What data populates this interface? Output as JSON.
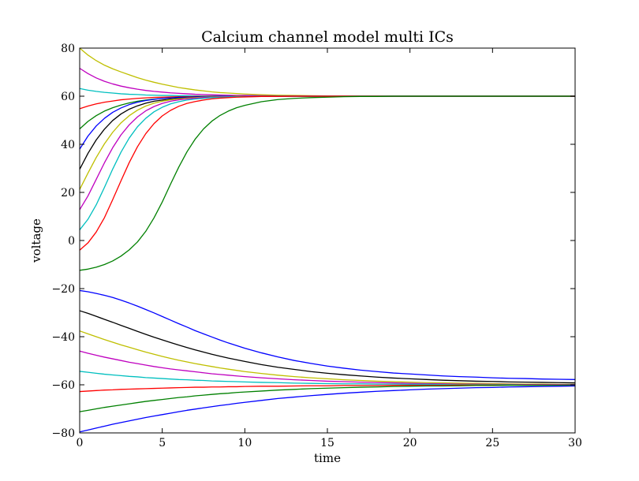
{
  "chart_data": {
    "type": "line",
    "title": "Calcium channel model multi ICs",
    "xlabel": "time",
    "ylabel": "voltage",
    "xlim": [
      0,
      30
    ],
    "ylim": [
      -80,
      80
    ],
    "xticks": [
      0,
      5,
      10,
      15,
      20,
      25,
      30
    ],
    "yticks": [
      -80,
      -60,
      -40,
      -20,
      0,
      20,
      40,
      60,
      80
    ],
    "xtick_labels": [
      "0",
      "5",
      "10",
      "15",
      "20",
      "25",
      "30"
    ],
    "ytick_labels": [
      "−80",
      "−60",
      "−40",
      "−20",
      "0",
      "20",
      "40",
      "60",
      "80"
    ],
    "grid": false,
    "legend": "none",
    "x": [
      0,
      0.5,
      1,
      1.5,
      2,
      2.5,
      3,
      3.5,
      4,
      4.5,
      5,
      5.5,
      6,
      6.5,
      7,
      7.5,
      8,
      8.5,
      9,
      9.5,
      10,
      11,
      12,
      13,
      14,
      15,
      16,
      17,
      18,
      19,
      20,
      21,
      22,
      23,
      24,
      25,
      26,
      27,
      28,
      29,
      30
    ],
    "series": [
      {
        "color": "#bfbf00",
        "values": [
          80,
          77.1,
          74.8,
          72.9,
          71.4,
          70.1,
          68.9,
          67.7,
          66.7,
          65.8,
          65,
          64.3,
          63.6,
          63.1,
          62.6,
          62.2,
          61.8,
          61.5,
          61.3,
          61.1,
          60.9,
          60.6,
          60.4,
          60.3,
          60.2,
          60.1,
          60.1,
          60,
          60,
          60,
          60,
          60,
          60,
          60,
          60,
          60,
          60,
          60,
          60,
          60,
          60
        ]
      },
      {
        "color": "#bf00bf",
        "values": [
          71.6,
          69.4,
          67.6,
          66.2,
          65.1,
          64.2,
          63.5,
          62.9,
          62.4,
          62,
          61.7,
          61.4,
          61.2,
          61,
          60.8,
          60.7,
          60.6,
          60.5,
          60.4,
          60.3,
          60.3,
          60.2,
          60.1,
          60.1,
          60,
          60,
          60,
          60,
          60,
          60,
          60,
          60,
          60,
          60,
          60,
          60,
          60,
          60,
          60,
          60,
          60
        ]
      },
      {
        "color": "#00bfbf",
        "values": [
          63.2,
          62.5,
          62,
          61.6,
          61.3,
          61,
          60.8,
          60.7,
          60.5,
          60.4,
          60.3,
          60.3,
          60.2,
          60.2,
          60.1,
          60.1,
          60.1,
          60.1,
          60,
          60,
          60,
          60,
          60,
          60,
          60,
          60,
          60,
          60,
          60,
          60,
          60,
          60,
          60,
          60,
          60,
          60,
          60,
          60,
          60,
          60,
          60
        ]
      },
      {
        "color": "#ff0000",
        "values": [
          54.8,
          55.9,
          56.8,
          57.5,
          58,
          58.5,
          58.8,
          59.1,
          59.3,
          59.5,
          59.6,
          59.7,
          59.8,
          59.8,
          59.9,
          59.9,
          59.9,
          60,
          60,
          60,
          60,
          60,
          60,
          60,
          60,
          60,
          60,
          60,
          60,
          60,
          60,
          60,
          60,
          60,
          60,
          60,
          60,
          60,
          60,
          60,
          60
        ]
      },
      {
        "color": "#008000",
        "values": [
          46.4,
          49.5,
          51.9,
          53.8,
          55.2,
          56.3,
          57.2,
          57.9,
          58.4,
          58.8,
          59.1,
          59.3,
          59.5,
          59.6,
          59.7,
          59.8,
          59.8,
          59.9,
          59.9,
          59.9,
          60,
          60,
          60,
          60,
          60,
          60,
          60,
          60,
          60,
          60,
          60,
          60,
          60,
          60,
          60,
          60,
          60,
          60,
          60,
          60,
          60
        ]
      },
      {
        "color": "#0000ff",
        "values": [
          38,
          43.4,
          47.6,
          50.8,
          53.3,
          55.1,
          56.5,
          57.5,
          58.2,
          58.7,
          59.1,
          59.3,
          59.5,
          59.6,
          59.7,
          59.8,
          59.8,
          59.9,
          59.9,
          59.9,
          60,
          60,
          60,
          60,
          60,
          60,
          60,
          60,
          60,
          60,
          60,
          60,
          60,
          60,
          60,
          60,
          60,
          60,
          60,
          60,
          60
        ]
      },
      {
        "color": "#000000",
        "values": [
          29.6,
          36.2,
          41.8,
          46.3,
          49.9,
          52.6,
          54.6,
          56,
          57.1,
          57.9,
          58.4,
          58.8,
          59.1,
          59.3,
          59.5,
          59.6,
          59.7,
          59.8,
          59.8,
          59.9,
          59.9,
          60,
          60,
          60,
          60,
          60,
          60,
          60,
          60,
          60,
          60,
          60,
          60,
          60,
          60,
          60,
          60,
          60,
          60,
          60,
          60
        ]
      },
      {
        "color": "#bfbf00",
        "values": [
          21.2,
          28,
          34.5,
          40.2,
          45,
          48.9,
          51.9,
          54.2,
          55.9,
          57.1,
          57.9,
          58.5,
          58.9,
          59.2,
          59.4,
          59.6,
          59.7,
          59.8,
          59.8,
          59.9,
          59.9,
          60,
          60,
          60,
          60,
          60,
          60,
          60,
          60,
          60,
          60,
          60,
          60,
          60,
          60,
          60,
          60,
          60,
          60,
          60,
          60
        ]
      },
      {
        "color": "#bf00bf",
        "values": [
          12.8,
          18.5,
          25.4,
          32.3,
          38.6,
          43.9,
          48.1,
          51.4,
          53.9,
          55.7,
          57,
          57.9,
          58.5,
          58.9,
          59.2,
          59.4,
          59.6,
          59.7,
          59.8,
          59.8,
          59.9,
          60,
          60,
          60,
          60,
          60,
          60,
          60,
          60,
          60,
          60,
          60,
          60,
          60,
          60,
          60,
          60,
          60,
          60,
          60,
          60
        ]
      },
      {
        "color": "#00bfbf",
        "values": [
          4.4,
          8.8,
          14.8,
          22.1,
          29.7,
          36.7,
          42.6,
          47.3,
          50.8,
          53.5,
          55.4,
          56.8,
          57.7,
          58.4,
          58.8,
          59.1,
          59.4,
          59.5,
          59.7,
          59.8,
          59.8,
          59.9,
          60,
          60,
          60,
          60,
          60,
          60,
          60,
          60,
          60,
          60,
          60,
          60,
          60,
          60,
          60,
          60,
          60,
          60,
          60
        ]
      },
      {
        "color": "#ff0000",
        "values": [
          -4,
          -1,
          3.5,
          9.5,
          17,
          24.8,
          32.4,
          39,
          44.4,
          48.6,
          51.8,
          54.1,
          55.8,
          57,
          57.8,
          58.4,
          58.9,
          59.2,
          59.4,
          59.6,
          59.7,
          59.9,
          59.9,
          60,
          60,
          60,
          60,
          60,
          60,
          60,
          60,
          60,
          60,
          60,
          60,
          60,
          60,
          60,
          60,
          60,
          60
        ]
      },
      {
        "color": "#008000",
        "values": [
          -12.4,
          -11.9,
          -11.1,
          -10,
          -8.5,
          -6.5,
          -3.9,
          -0.6,
          3.8,
          9.4,
          16,
          23.4,
          30.5,
          36.9,
          42.2,
          46.4,
          49.6,
          52,
          53.8,
          55.2,
          56.2,
          57.7,
          58.6,
          59.1,
          59.4,
          59.6,
          59.8,
          59.9,
          59.9,
          60,
          60,
          60,
          60,
          60,
          60,
          60,
          60,
          60,
          60,
          60,
          60
        ]
      },
      {
        "color": "#0000ff",
        "values": [
          -20.8,
          -21.3,
          -22,
          -22.8,
          -23.7,
          -24.8,
          -26,
          -27.3,
          -28.7,
          -30.1,
          -31.6,
          -33.1,
          -34.6,
          -36,
          -37.5,
          -38.8,
          -40.1,
          -41.4,
          -42.6,
          -43.7,
          -44.8,
          -46.7,
          -48.4,
          -49.9,
          -51.1,
          -52.2,
          -53.1,
          -53.9,
          -54.5,
          -55.1,
          -55.5,
          -55.9,
          -56.3,
          -56.6,
          -56.8,
          -57.1,
          -57.3,
          -57.4,
          -57.6,
          -57.7,
          -57.8
        ]
      },
      {
        "color": "#000000",
        "values": [
          -29.2,
          -30.3,
          -31.5,
          -32.8,
          -34,
          -35.3,
          -36.5,
          -37.8,
          -39,
          -40.2,
          -41.3,
          -42.4,
          -43.5,
          -44.5,
          -45.5,
          -46.4,
          -47.3,
          -48.1,
          -48.9,
          -49.6,
          -50.3,
          -51.6,
          -52.7,
          -53.6,
          -54.5,
          -55.2,
          -55.8,
          -56.3,
          -56.8,
          -57.2,
          -57.5,
          -57.8,
          -58.1,
          -58.3,
          -58.5,
          -58.6,
          -58.8,
          -58.9,
          -59,
          -59.1,
          -59.2
        ]
      },
      {
        "color": "#bfbf00",
        "values": [
          -37.6,
          -38.8,
          -40,
          -41.2,
          -42.3,
          -43.4,
          -44.4,
          -45.4,
          -46.4,
          -47.3,
          -48.2,
          -49,
          -49.8,
          -50.5,
          -51.2,
          -51.8,
          -52.4,
          -53,
          -53.5,
          -54,
          -54.5,
          -55.3,
          -56,
          -56.6,
          -57.1,
          -57.5,
          -57.9,
          -58.2,
          -58.5,
          -58.7,
          -58.9,
          -59.1,
          -59.2,
          -59.3,
          -59.4,
          -59.5,
          -59.6,
          -59.7,
          -59.7,
          -59.8,
          -59.8
        ]
      },
      {
        "color": "#bf00bf",
        "values": [
          -46,
          -46.9,
          -47.7,
          -48.5,
          -49.2,
          -49.9,
          -50.6,
          -51.2,
          -51.8,
          -52.4,
          -52.9,
          -53.4,
          -53.8,
          -54.2,
          -54.6,
          -55,
          -55.4,
          -55.7,
          -56,
          -56.3,
          -56.6,
          -57.1,
          -57.5,
          -57.9,
          -58.2,
          -58.5,
          -58.7,
          -58.9,
          -59.1,
          -59.2,
          -59.4,
          -59.5,
          -59.6,
          -59.7,
          -59.7,
          -59.8,
          -59.8,
          -59.9,
          -59.9,
          -59.9,
          -59.9
        ]
      },
      {
        "color": "#00bfbf",
        "values": [
          -54.4,
          -54.8,
          -55.2,
          -55.6,
          -55.9,
          -56.2,
          -56.5,
          -56.7,
          -57,
          -57.2,
          -57.4,
          -57.6,
          -57.8,
          -57.9,
          -58.1,
          -58.2,
          -58.4,
          -58.5,
          -58.6,
          -58.7,
          -58.8,
          -59,
          -59.1,
          -59.3,
          -59.4,
          -59.5,
          -59.6,
          -59.6,
          -59.7,
          -59.7,
          -59.8,
          -59.8,
          -59.9,
          -59.9,
          -59.9,
          -59.9,
          -59.9,
          -60,
          -60,
          -60,
          -60
        ]
      },
      {
        "color": "#ff0000",
        "values": [
          -62.8,
          -62.6,
          -62.4,
          -62.2,
          -62.1,
          -61.9,
          -61.8,
          -61.7,
          -61.6,
          -61.5,
          -61.4,
          -61.3,
          -61.2,
          -61.1,
          -61,
          -61,
          -60.9,
          -60.9,
          -60.8,
          -60.8,
          -60.7,
          -60.6,
          -60.6,
          -60.5,
          -60.4,
          -60.4,
          -60.3,
          -60.3,
          -60.3,
          -60.2,
          -60.2,
          -60.2,
          -60.2,
          -60.1,
          -60.1,
          -60.1,
          -60.1,
          -60.1,
          -60.1,
          -60.1,
          -60.1
        ]
      },
      {
        "color": "#008000",
        "values": [
          -71.2,
          -70.6,
          -70,
          -69.4,
          -68.9,
          -68.4,
          -67.9,
          -67.4,
          -66.9,
          -66.5,
          -66.1,
          -65.7,
          -65.3,
          -65,
          -64.6,
          -64.3,
          -64,
          -63.7,
          -63.5,
          -63.2,
          -63,
          -62.6,
          -62.2,
          -61.9,
          -61.6,
          -61.4,
          -61.2,
          -61,
          -60.9,
          -60.7,
          -60.6,
          -60.5,
          -60.5,
          -60.4,
          -60.3,
          -60.3,
          -60.2,
          -60.2,
          -60.2,
          -60.2,
          -60.1
        ]
      },
      {
        "color": "#0000ff",
        "values": [
          -79.6,
          -78.8,
          -78,
          -77.2,
          -76.4,
          -75.7,
          -75,
          -74.3,
          -73.6,
          -73,
          -72.4,
          -71.8,
          -71.2,
          -70.6,
          -70.1,
          -69.6,
          -69.1,
          -68.6,
          -68.2,
          -67.7,
          -67.3,
          -66.5,
          -65.7,
          -65.1,
          -64.5,
          -64,
          -63.5,
          -63.1,
          -62.7,
          -62.4,
          -62.1,
          -61.8,
          -61.6,
          -61.4,
          -61.2,
          -61.1,
          -60.9,
          -60.8,
          -60.7,
          -60.6,
          -60.5
        ]
      }
    ]
  }
}
